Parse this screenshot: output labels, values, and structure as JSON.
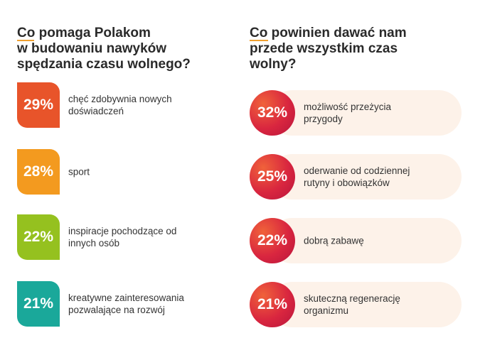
{
  "chart_data": [
    {
      "type": "bar",
      "title": "Co pomaga Polakom w budowaniu nawyków spędzania czasu wolnego?",
      "categories": [
        "chęć zdobywnia nowych doświadczeń",
        "sport",
        "inspiracje pochodzące od innych osób",
        "kreatywne zainteresowania pozwalające na rozwój"
      ],
      "values": [
        "29%",
        "28%",
        "22%",
        "21%"
      ],
      "colors": [
        "#e8542a",
        "#f39a1f",
        "#95c11f",
        "#1aa89a"
      ]
    },
    {
      "type": "bar",
      "title": "Co powinien dawać nam przede wszystkim czas wolny?",
      "categories": [
        "możliwość przeżycia przygody",
        "oderwanie od codziennej rutyny i obowiązków",
        "dobrą zabawę",
        "skuteczną regenerację organizmu"
      ],
      "values": [
        "32%",
        "25%",
        "22%",
        "21%"
      ],
      "colors": [
        "#d9263f",
        "#d9263f",
        "#d9263f",
        "#d9263f"
      ]
    }
  ],
  "left": {
    "title_lines": [
      "Co pomaga Polakom",
      "w budowaniu nawyków",
      "spędzania czasu wolnego?"
    ],
    "items": [
      {
        "value": "29%",
        "lines": [
          "chęć zdobywnia nowych",
          "doświadczeń"
        ],
        "color": "#e8542a"
      },
      {
        "value": "28%",
        "lines": [
          "sport"
        ],
        "color": "#f39a1f"
      },
      {
        "value": "22%",
        "lines": [
          "inspiracje pochodzące od",
          "innych osób"
        ],
        "color": "#95c11f"
      },
      {
        "value": "21%",
        "lines": [
          "kreatywne zainteresowania",
          "pozwalające na rozwój"
        ],
        "color": "#1aa89a"
      }
    ]
  },
  "right": {
    "title_lines": [
      "Co powinien dawać nam",
      "przede wszystkim czas",
      "wolny?"
    ],
    "items": [
      {
        "value": "32%",
        "lines": [
          "możliwość przeżycia",
          "przygody"
        ]
      },
      {
        "value": "25%",
        "lines": [
          "oderwanie od codziennej",
          "rutyny i obowiązków"
        ]
      },
      {
        "value": "22%",
        "lines": [
          "dobrą zabawę"
        ]
      },
      {
        "value": "21%",
        "lines": [
          "skuteczną regenerację",
          "organizmu"
        ]
      }
    ]
  },
  "colors": {
    "accent_underline": "#f0a030",
    "pill_background": "#fdf2e9"
  }
}
